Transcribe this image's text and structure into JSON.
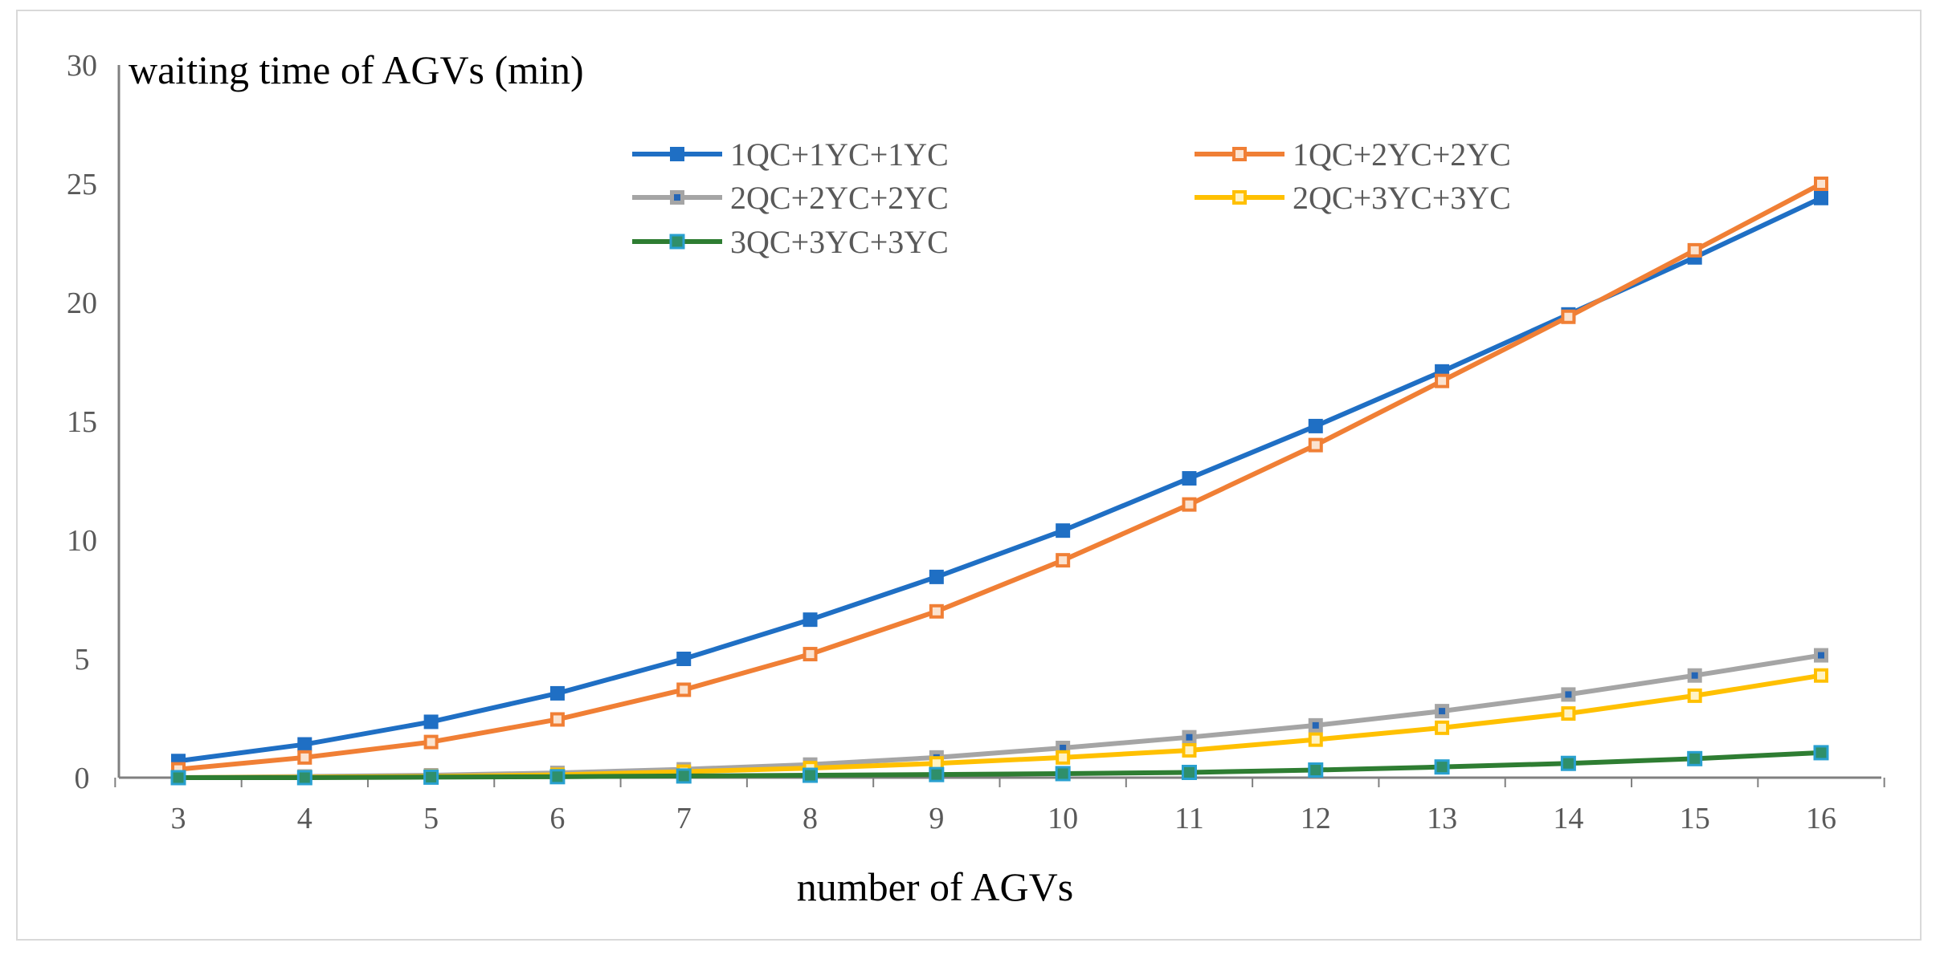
{
  "chart_data": {
    "type": "line",
    "title": "",
    "xlabel": "number of AGVs",
    "ylabel": "waiting time of AGVs (min)",
    "x": [
      3,
      4,
      5,
      6,
      7,
      8,
      9,
      10,
      11,
      12,
      13,
      14,
      15,
      16
    ],
    "ylim": [
      0,
      30
    ],
    "yticks": [
      0,
      5,
      10,
      15,
      20,
      25,
      30
    ],
    "grid": false,
    "legend_position": "top-center",
    "series": [
      {
        "name": "1QC+1YC+1YC",
        "color": "#1f6fc4",
        "marker": "filled-square",
        "values": [
          0.7,
          1.4,
          2.35,
          3.55,
          5.0,
          6.65,
          8.45,
          10.4,
          12.6,
          14.8,
          17.1,
          19.5,
          21.9,
          24.4
        ]
      },
      {
        "name": "1QC+2YC+2YC",
        "color": "#f07f35",
        "marker": "hollow-square",
        "values": [
          0.35,
          0.85,
          1.5,
          2.45,
          3.7,
          5.2,
          7.0,
          9.15,
          11.5,
          14.0,
          16.7,
          19.4,
          22.2,
          25.0
        ]
      },
      {
        "name": "2QC+2YC+2YC",
        "color": "#a5a5a5",
        "marker": "blue-center-square",
        "values": [
          0.0,
          0.05,
          0.1,
          0.2,
          0.35,
          0.55,
          0.85,
          1.25,
          1.7,
          2.2,
          2.8,
          3.5,
          4.3,
          5.15
        ]
      },
      {
        "name": "2QC+3YC+3YC",
        "color": "#ffc000",
        "marker": "hollow-square",
        "values": [
          0.0,
          0.02,
          0.05,
          0.12,
          0.25,
          0.4,
          0.6,
          0.85,
          1.15,
          1.6,
          2.1,
          2.7,
          3.45,
          4.3
        ]
      },
      {
        "name": "3QC+3YC+3YC",
        "color": "#2e7d32",
        "marker": "teal-square",
        "values": [
          0.0,
          0.0,
          0.02,
          0.04,
          0.07,
          0.1,
          0.13,
          0.17,
          0.22,
          0.32,
          0.45,
          0.6,
          0.8,
          1.05
        ]
      }
    ]
  }
}
